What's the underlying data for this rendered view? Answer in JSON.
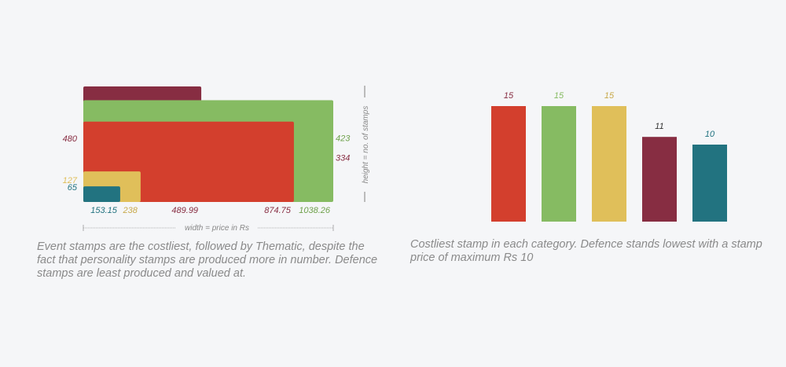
{
  "chart_data": [
    {
      "type": "bar",
      "subtype": "marimekko-overlap",
      "xlabel": "width = price in Rs",
      "ylabel": "height = no. of stamps",
      "series": [
        {
          "width": 489.99,
          "height": 480,
          "color": "#872d42",
          "width_label": "489.99",
          "height_label": "480"
        },
        {
          "width": 1038.26,
          "height": 423,
          "color": "#86bb62",
          "width_label": "1038.26",
          "height_label": "423"
        },
        {
          "width": 874.75,
          "height": 334,
          "color": "#d33f2d",
          "width_label": "874.75",
          "height_label": "334"
        },
        {
          "width": 238,
          "height": 127,
          "color": "#e0bf5a",
          "width_label": "238",
          "height_label": "127"
        },
        {
          "width": 153.15,
          "height": 65,
          "color": "#227380",
          "width_label": "153.15",
          "height_label": "65"
        }
      ],
      "caption": "Event stamps are the costliest, followed by Thematic, despite the fact that personality stamps are produced more in number. Defence stamps are least produced and valued at."
    },
    {
      "type": "bar",
      "values": [
        15,
        15,
        15,
        11,
        10
      ],
      "colors": [
        "#d33f2d",
        "#86bb62",
        "#e0bf5a",
        "#872d42",
        "#227380"
      ],
      "ylim": [
        0,
        15
      ],
      "caption": "Costliest stamp in each category. Defence stands lowest with a stamp price of maximum Rs 10"
    }
  ]
}
